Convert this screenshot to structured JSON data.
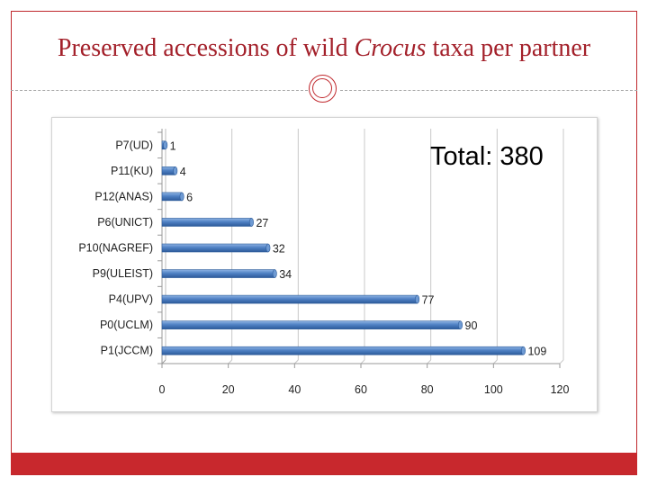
{
  "slide": {
    "title_pre": "Preserved accessions of wild ",
    "title_italic": "Crocus",
    "title_post": " taxa per partner",
    "total_text": "Total: 380",
    "accent_color": "#c0282d"
  },
  "chart_data": {
    "type": "bar",
    "orientation": "horizontal",
    "categories": [
      "P7(UD)",
      "P11(KU)",
      "P12(ANAS)",
      "P6(UNICT)",
      "P10(NAGREF)",
      "P9(ULEIST)",
      "P4(UPV)",
      "P0(UCLM)",
      "P1(JCCM)"
    ],
    "values": [
      1,
      4,
      6,
      27,
      32,
      34,
      77,
      90,
      109
    ],
    "data_labels": [
      "1",
      "4",
      "6",
      "27",
      "32",
      "34",
      "77",
      "90",
      "109"
    ],
    "xlim": [
      0,
      120
    ],
    "xticks": [
      "0",
      "20",
      "40",
      "60",
      "80",
      "100",
      "120"
    ],
    "grid": true,
    "bar_color": "#4a7dc0"
  }
}
